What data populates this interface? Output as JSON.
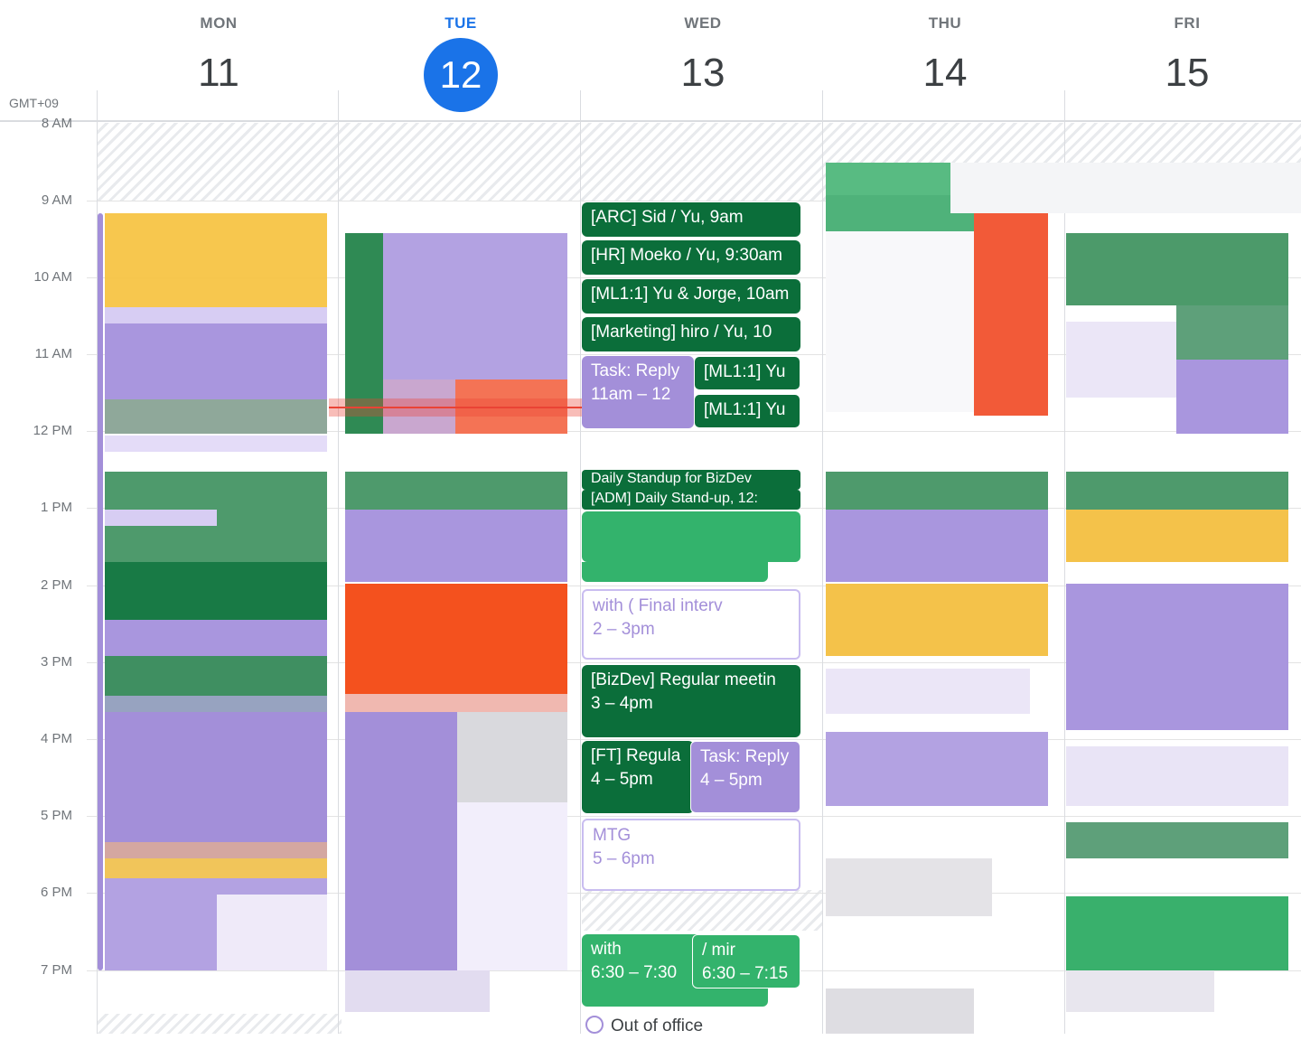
{
  "timezone": "GMT+09",
  "days": [
    {
      "name": "MON",
      "date": "11"
    },
    {
      "name": "TUE",
      "date": "12"
    },
    {
      "name": "WED",
      "date": "13"
    },
    {
      "name": "THU",
      "date": "14"
    },
    {
      "name": "FRI",
      "date": "15"
    }
  ],
  "hours": [
    "8 AM",
    "9 AM",
    "10 AM",
    "11 AM",
    "12 PM",
    "1 PM",
    "2 PM",
    "3 PM",
    "4 PM",
    "5 PM",
    "6 PM",
    "7 PM"
  ],
  "wednesday_events": [
    {
      "title": "[ARC] Sid / Yu, 9am",
      "time": ""
    },
    {
      "title": "[HR] Moeko / Yu, 9:30am",
      "time": ""
    },
    {
      "title": "[ML1:1] Yu & Jorge, 10am",
      "time": ""
    },
    {
      "title": "[Marketing] hiro / Yu, 10",
      "time": ""
    },
    {
      "title": "Task: Reply",
      "time": "11am – 12"
    },
    {
      "title": "[ML1:1] Yu",
      "time": ""
    },
    {
      "title": "[ML1:1] Yu",
      "time": ""
    },
    {
      "title": "Daily Standup for BizDev",
      "time": ""
    },
    {
      "title": "[ADM] Daily Stand-up, 12:",
      "time": ""
    },
    {
      "title": "with          ( Final interv",
      "time": "2 – 3pm"
    },
    {
      "title": "[BizDev] Regular meetin",
      "time": "3 – 4pm"
    },
    {
      "title": "[FT] Regula",
      "time": "4 – 5pm"
    },
    {
      "title": "Task: Reply",
      "time": "4 – 5pm"
    },
    {
      "title": "MTG",
      "time": "5 – 6pm"
    },
    {
      "title": "with",
      "time": "6:30 – 7:30"
    },
    {
      "title": "/ mir",
      "time": "6:30 – 7:15"
    }
  ],
  "out_of_office": "Out of office",
  "colors": {
    "today": "#1a73e8",
    "dark_green": "#0b6e3a",
    "lavender": "#a38fd9",
    "green": "#33b36c",
    "tomato": "#f4511e",
    "banana": "#f6bf26"
  }
}
